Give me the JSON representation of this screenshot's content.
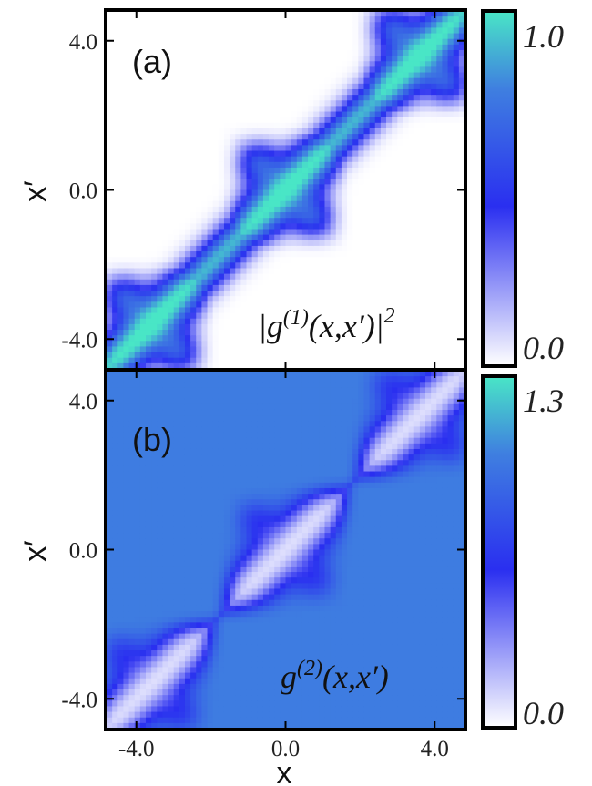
{
  "chart_data": [
    {
      "type": "heatmap",
      "panel_label": "(a)",
      "annotation": {
        "base": "|g",
        "sup1": "(1)",
        "args": "(x,x′)|",
        "sup2": "2"
      },
      "xlim": [
        -4.8,
        4.8
      ],
      "ylim": [
        -4.8,
        4.8
      ],
      "x_ticks": [
        "-4.0",
        "0.0",
        "4.0"
      ],
      "y_ticks": [
        "-4.0",
        "0.0",
        "4.0"
      ],
      "ylabel": "x′",
      "colorbar": {
        "min": 0.0,
        "max": 1.0,
        "tick_labels": [
          "1.0",
          "0.0"
        ]
      },
      "colormap": [
        "#ffffff",
        "#2a2ff0",
        "#3f7fe0",
        "#49e6c6"
      ],
      "structure": {
        "cluster_centers": [
          -3.6,
          0.0,
          3.6
        ],
        "cluster_half_width": 1.65,
        "diagonal_level": 1.0,
        "offdiagonal_level": 0.0,
        "corner_lobe_level": 0.55
      }
    },
    {
      "type": "heatmap",
      "panel_label": "(b)",
      "annotation": {
        "base": "g",
        "sup1": "(2)",
        "args": "(x,x′)"
      },
      "xlim": [
        -4.8,
        4.8
      ],
      "ylim": [
        -4.8,
        4.8
      ],
      "x_ticks": [
        "-4.0",
        "0.0",
        "4.0"
      ],
      "y_ticks": [
        "-4.0",
        "0.0",
        "4.0"
      ],
      "xlabel": "x",
      "ylabel": "x′",
      "colorbar": {
        "min": 0.0,
        "max": 1.3,
        "tick_labels": [
          "1.3",
          "0.0"
        ]
      },
      "colormap": [
        "#ffffff",
        "#2a2ff0",
        "#3f7fe0",
        "#49e6c6"
      ],
      "structure": {
        "cluster_centers": [
          -3.6,
          0.0,
          3.6
        ],
        "cluster_half_width": 1.65,
        "background_level": 1.0,
        "diagonal_level": 0.1,
        "corner_lobe_level": 0.7
      }
    }
  ]
}
